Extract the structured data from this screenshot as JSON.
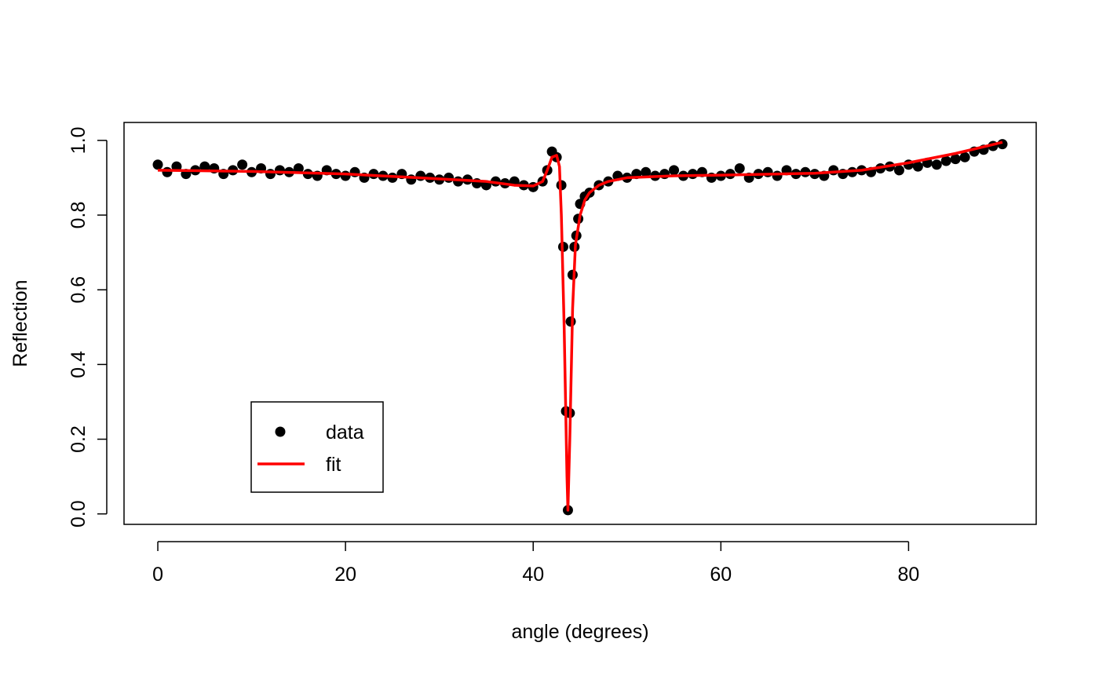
{
  "chart_data": {
    "type": "scatter",
    "xlabel": "angle (degrees)",
    "ylabel": "Reflection",
    "xlim": [
      -3.6,
      93.6
    ],
    "ylim": [
      -0.028,
      1.048
    ],
    "xticks": [
      0,
      20,
      40,
      60,
      80
    ],
    "yticks": [
      {
        "value": 0,
        "label": "0.0"
      },
      0.2,
      0.4,
      0.6,
      0.8,
      {
        "value": 1,
        "label": "1.0"
      }
    ],
    "legend": "bottomleft",
    "series": [
      {
        "name": "data",
        "color": "#000000",
        "mode": "points",
        "x": [
          0,
          1,
          2,
          3,
          4,
          5,
          6,
          7,
          8,
          9,
          10,
          11,
          12,
          13,
          14,
          15,
          16,
          17,
          18,
          19,
          20,
          21,
          22,
          23,
          24,
          25,
          26,
          27,
          28,
          29,
          30,
          31,
          32,
          33,
          34,
          35,
          36,
          37,
          38,
          39,
          40,
          41,
          41.5,
          42,
          42.5,
          43,
          43.2,
          43.5,
          43.7,
          43.9,
          44,
          44.2,
          44.4,
          44.6,
          44.8,
          45,
          45.5,
          46,
          47,
          48,
          49,
          50,
          51,
          52,
          53,
          54,
          55,
          56,
          57,
          58,
          59,
          60,
          61,
          62,
          63,
          64,
          65,
          66,
          67,
          68,
          69,
          70,
          71,
          72,
          73,
          74,
          75,
          76,
          77,
          78,
          79,
          80,
          81,
          82,
          83,
          84,
          85,
          86,
          87,
          88,
          89,
          90
        ],
        "values": [
          0.935,
          0.915,
          0.93,
          0.91,
          0.92,
          0.93,
          0.925,
          0.91,
          0.92,
          0.935,
          0.915,
          0.925,
          0.91,
          0.92,
          0.915,
          0.925,
          0.91,
          0.905,
          0.92,
          0.91,
          0.905,
          0.915,
          0.9,
          0.91,
          0.905,
          0.9,
          0.91,
          0.895,
          0.905,
          0.9,
          0.895,
          0.9,
          0.89,
          0.895,
          0.885,
          0.88,
          0.89,
          0.885,
          0.89,
          0.88,
          0.875,
          0.89,
          0.92,
          0.97,
          0.955,
          0.88,
          0.715,
          0.275,
          0.01,
          0.27,
          0.515,
          0.64,
          0.715,
          0.745,
          0.79,
          0.83,
          0.85,
          0.86,
          0.88,
          0.89,
          0.905,
          0.9,
          0.91,
          0.915,
          0.905,
          0.91,
          0.92,
          0.905,
          0.91,
          0.915,
          0.9,
          0.905,
          0.91,
          0.925,
          0.9,
          0.91,
          0.915,
          0.905,
          0.92,
          0.91,
          0.915,
          0.91,
          0.905,
          0.92,
          0.91,
          0.915,
          0.92,
          0.915,
          0.925,
          0.93,
          0.92,
          0.935,
          0.93,
          0.94,
          0.935,
          0.945,
          0.95,
          0.955,
          0.97,
          0.975,
          0.985,
          0.99
        ]
      },
      {
        "name": "fit",
        "color": "#ff0000",
        "mode": "line",
        "x": [
          0,
          10,
          20,
          30,
          35,
          38,
          40,
          41,
          41.5,
          42,
          42.5,
          42.8,
          43,
          43.3,
          43.6,
          43.7,
          43.9,
          44.2,
          44.5,
          45,
          45.5,
          46,
          47,
          48,
          50,
          55,
          60,
          70,
          75,
          80,
          85,
          90
        ],
        "values": [
          0.92,
          0.917,
          0.91,
          0.897,
          0.89,
          0.88,
          0.878,
          0.89,
          0.92,
          0.955,
          0.96,
          0.93,
          0.8,
          0.5,
          0.1,
          0.01,
          0.2,
          0.55,
          0.72,
          0.8,
          0.84,
          0.86,
          0.88,
          0.89,
          0.9,
          0.905,
          0.907,
          0.912,
          0.92,
          0.94,
          0.965,
          0.995
        ]
      }
    ]
  }
}
